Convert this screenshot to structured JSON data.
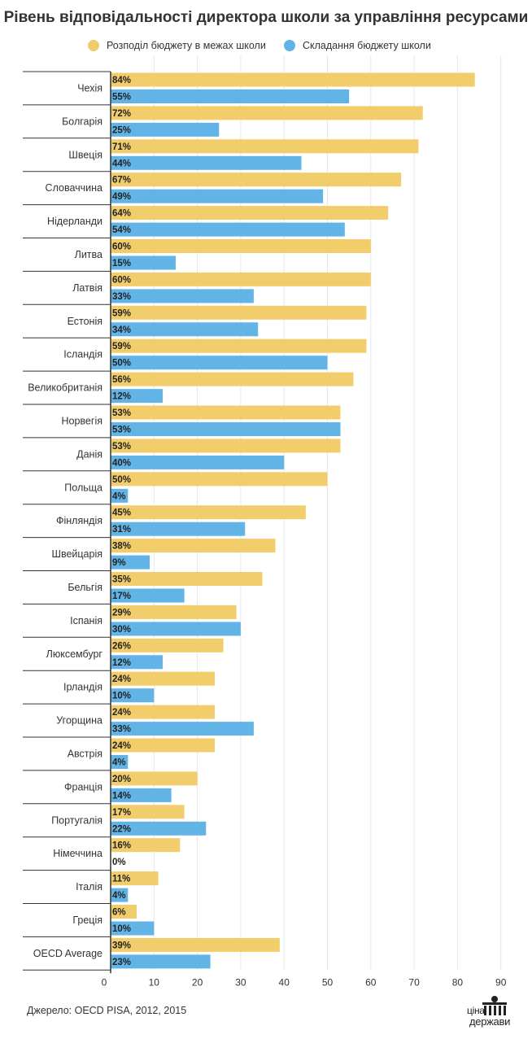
{
  "title": "Рівень відповідальності директора школи за управління ресурсами",
  "source": "Джерело: OECD PISA, 2012, 2015",
  "logo": {
    "top": "ціна",
    "bottom": "держави"
  },
  "colors": {
    "series1": "#f2cd6b",
    "series2": "#62b4e6",
    "grid": "#e6e6e6",
    "axis": "#333333"
  },
  "chart_data": {
    "type": "bar",
    "orientation": "horizontal",
    "title": "Рівень відповідальності директора школи за управління ресурсами",
    "categories": [
      "Чехія",
      "Болгарія",
      "Швеція",
      "Словаччина",
      "Нідерланди",
      "Литва",
      "Латвія",
      "Естонія",
      "Ісландія",
      "Великобританія",
      "Норвегія",
      "Данія",
      "Польща",
      "Фінляндія",
      "Швейцарія",
      "Бельгія",
      "Іспанія",
      "Люксембург",
      "Ірландія",
      "Угорщина",
      "Австрія",
      "Франція",
      "Португалія",
      "Німеччина",
      "Італія",
      "Греція",
      "OECD Average"
    ],
    "series": [
      {
        "name": "Розподіл бюджету в межах школи",
        "color": "#f2cd6b",
        "values": [
          84,
          72,
          71,
          67,
          64,
          60,
          60,
          59,
          59,
          56,
          53,
          53,
          50,
          45,
          38,
          35,
          29,
          26,
          24,
          24,
          24,
          20,
          17,
          16,
          11,
          6,
          39
        ]
      },
      {
        "name": "Складання бюджету школи",
        "color": "#62b4e6",
        "values": [
          55,
          25,
          44,
          49,
          54,
          15,
          33,
          34,
          50,
          12,
          53,
          40,
          4,
          31,
          9,
          17,
          30,
          12,
          10,
          33,
          4,
          14,
          22,
          0,
          4,
          10,
          23
        ]
      }
    ],
    "value_suffix": "%",
    "xlim": [
      0,
      90
    ],
    "xticks": [
      0,
      10,
      20,
      30,
      40,
      50,
      60,
      70,
      80,
      90
    ],
    "grid": true,
    "legend": "top"
  }
}
